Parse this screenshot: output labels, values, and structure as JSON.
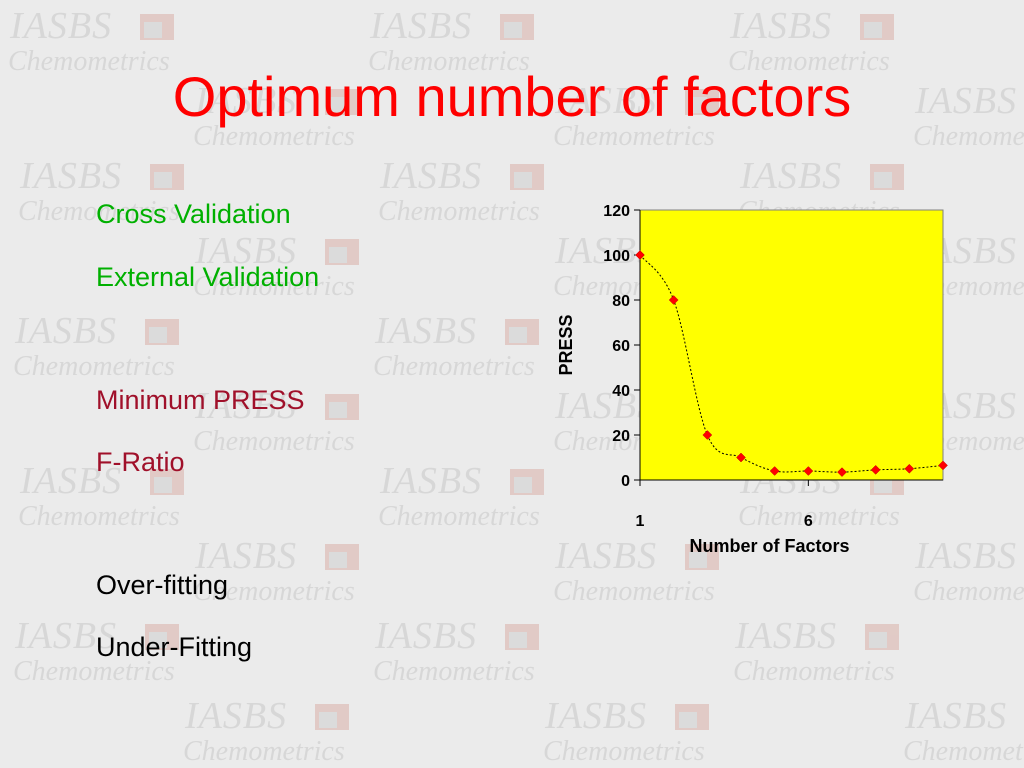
{
  "slide": {
    "title": "Optimum number of factors",
    "title_color": "#ff0000",
    "watermark": {
      "brand": "IASBS",
      "tagline": "Chemometrics"
    }
  },
  "bullets": [
    {
      "text": "Cross Validation",
      "color": "#00b000"
    },
    {
      "text": "External Validation",
      "color": "#00b000"
    },
    {
      "text": "Minimum PRESS",
      "color": "#a0102a"
    },
    {
      "text": "F-Ratio",
      "color": "#a0102a"
    },
    {
      "text": "Over-fitting",
      "color": "#000000"
    },
    {
      "text": "Under-Fitting",
      "color": "#000000"
    }
  ],
  "chart_data": {
    "type": "line",
    "title": "",
    "xlabel": "Number of Factors",
    "ylabel": "PRESS",
    "x": [
      1,
      2,
      3,
      4,
      5,
      6,
      7,
      8,
      9,
      10
    ],
    "series": [
      {
        "values": [
          100,
          80,
          20,
          10,
          4,
          4,
          3.5,
          4.5,
          5,
          6.5
        ]
      }
    ],
    "xlim": [
      1,
      10
    ],
    "ylim": [
      0,
      120
    ],
    "xticks": [
      1,
      6
    ],
    "yticks": [
      0,
      20,
      40,
      60,
      80,
      100,
      120
    ],
    "grid": false,
    "legend": "none",
    "plot_bg": "#ffff00",
    "marker_color": "#ff0000",
    "line_style": "dotted smooth"
  }
}
